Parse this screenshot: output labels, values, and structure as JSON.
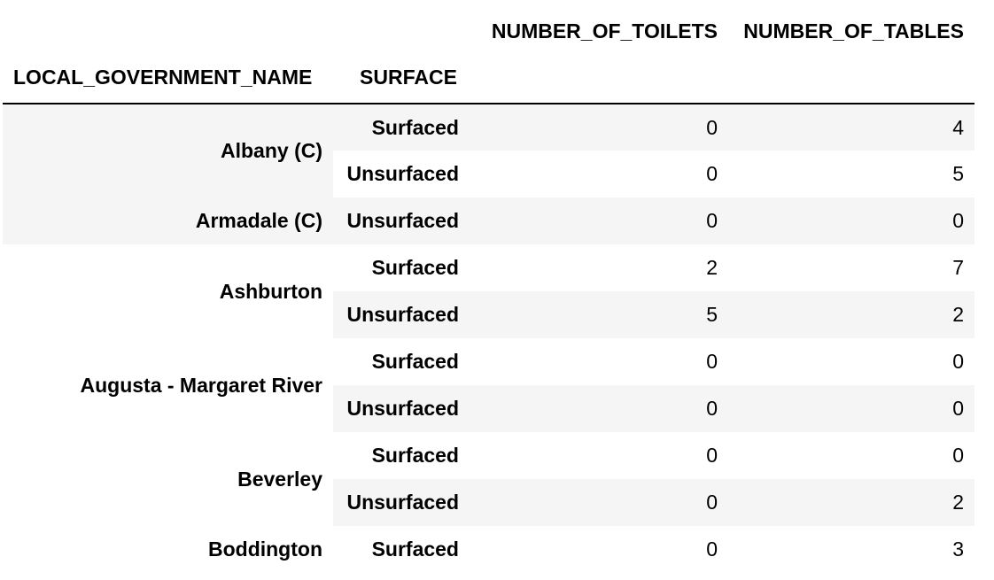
{
  "header": {
    "col_toilets": "NUMBER_OF_TOILETS",
    "col_tables": "NUMBER_OF_TABLES",
    "index_name_lgn": "LOCAL_GOVERNMENT_NAME",
    "index_name_surface": "SURFACE"
  },
  "rows": [
    {
      "lgn": "Albany (C)",
      "surface": "Surfaced",
      "toilets": "0",
      "tables": "4"
    },
    {
      "lgn": "",
      "surface": "Unsurfaced",
      "toilets": "0",
      "tables": "5"
    },
    {
      "lgn": "Armadale (C)",
      "surface": "Unsurfaced",
      "toilets": "0",
      "tables": "0"
    },
    {
      "lgn": "Ashburton",
      "surface": "Surfaced",
      "toilets": "2",
      "tables": "7"
    },
    {
      "lgn": "",
      "surface": "Unsurfaced",
      "toilets": "5",
      "tables": "2"
    },
    {
      "lgn": "Augusta - Margaret River",
      "surface": "Surfaced",
      "toilets": "0",
      "tables": "0"
    },
    {
      "lgn": "",
      "surface": "Unsurfaced",
      "toilets": "0",
      "tables": "0"
    },
    {
      "lgn": "Beverley",
      "surface": "Surfaced",
      "toilets": "0",
      "tables": "0"
    },
    {
      "lgn": "",
      "surface": "Unsurfaced",
      "toilets": "0",
      "tables": "2"
    },
    {
      "lgn": "Boddington",
      "surface": "Surfaced",
      "toilets": "0",
      "tables": "3"
    }
  ]
}
